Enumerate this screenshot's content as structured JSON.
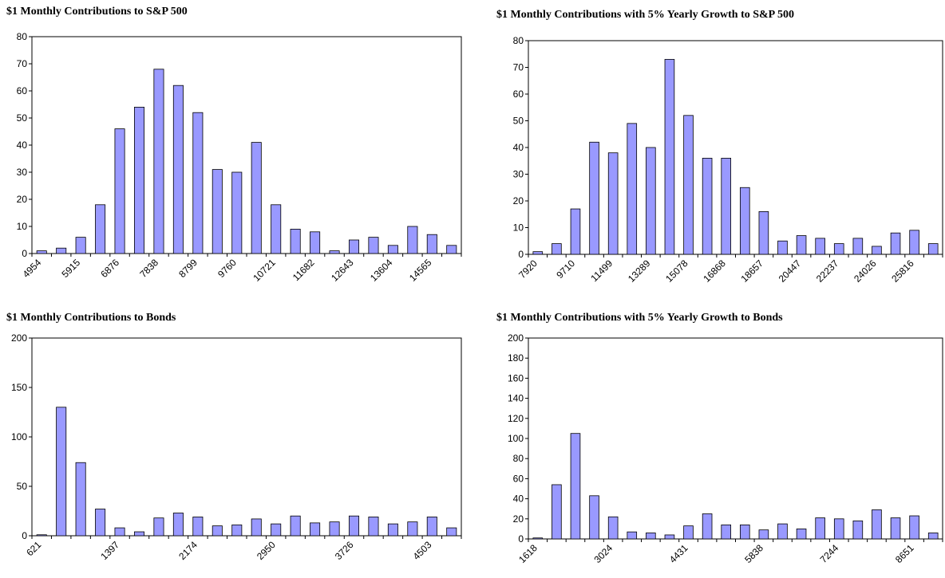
{
  "chart_data": [
    {
      "type": "bar",
      "title": "$1 Monthly Contributions to S&P 500",
      "categories": [
        "4954",
        null,
        "5915",
        null,
        "6876",
        null,
        "7838",
        null,
        "8799",
        null,
        "9760",
        null,
        "10721",
        null,
        "11682",
        null,
        "12643",
        null,
        "13604",
        null,
        "14565",
        null
      ],
      "values": [
        1,
        2,
        6,
        18,
        46,
        54,
        68,
        62,
        52,
        31,
        30,
        41,
        18,
        9,
        8,
        1,
        5,
        6,
        3,
        10,
        7,
        3
      ],
      "color": "#9999ff",
      "ylim": [
        0,
        80
      ],
      "yticks": [
        0,
        10,
        20,
        30,
        40,
        50,
        60,
        70,
        80
      ]
    },
    {
      "type": "bar",
      "title": "$1 Monthly Contributions with 5% Yearly Growth to S&P 500",
      "categories": [
        "7920",
        null,
        "9710",
        null,
        "11499",
        null,
        "13289",
        null,
        "15078",
        null,
        "16868",
        null,
        "18657",
        null,
        "20447",
        null,
        "22237",
        null,
        "24026",
        null,
        "25816",
        null
      ],
      "values": [
        1,
        4,
        17,
        42,
        38,
        49,
        40,
        73,
        52,
        36,
        36,
        25,
        16,
        5,
        7,
        6,
        4,
        6,
        3,
        8,
        9,
        4
      ],
      "color": "#9999ff",
      "ylim": [
        0,
        80
      ],
      "yticks": [
        0,
        10,
        20,
        30,
        40,
        50,
        60,
        70,
        80
      ]
    },
    {
      "type": "bar",
      "title": "$1 Monthly Contributions to Bonds",
      "categories": [
        "621",
        null,
        null,
        null,
        "1397",
        null,
        null,
        null,
        "2174",
        null,
        null,
        null,
        "2950",
        null,
        null,
        null,
        "3726",
        null,
        null,
        null,
        "4503",
        null
      ],
      "values": [
        1,
        130,
        74,
        27,
        8,
        4,
        18,
        23,
        19,
        10,
        11,
        17,
        12,
        20,
        13,
        14,
        20,
        19,
        12,
        14,
        19,
        8
      ],
      "color": "#9999ff",
      "ylim": [
        0,
        200
      ],
      "yticks": [
        0,
        50,
        100,
        150,
        200
      ]
    },
    {
      "type": "bar",
      "title": "$1 Monthly Contributions with 5% Yearly Growth to Bonds",
      "categories": [
        "1618",
        null,
        null,
        null,
        "3024",
        null,
        null,
        null,
        "4431",
        null,
        null,
        null,
        "5838",
        null,
        null,
        null,
        "7244",
        null,
        null,
        null,
        "8651",
        null
      ],
      "values": [
        1,
        54,
        105,
        43,
        22,
        7,
        6,
        4,
        13,
        25,
        14,
        14,
        9,
        15,
        10,
        21,
        20,
        18,
        29,
        21,
        23,
        6
      ],
      "color": "#9999ff",
      "ylim": [
        0,
        200
      ],
      "yticks": [
        0,
        20,
        40,
        60,
        80,
        100,
        120,
        140,
        160,
        180,
        200
      ]
    }
  ]
}
